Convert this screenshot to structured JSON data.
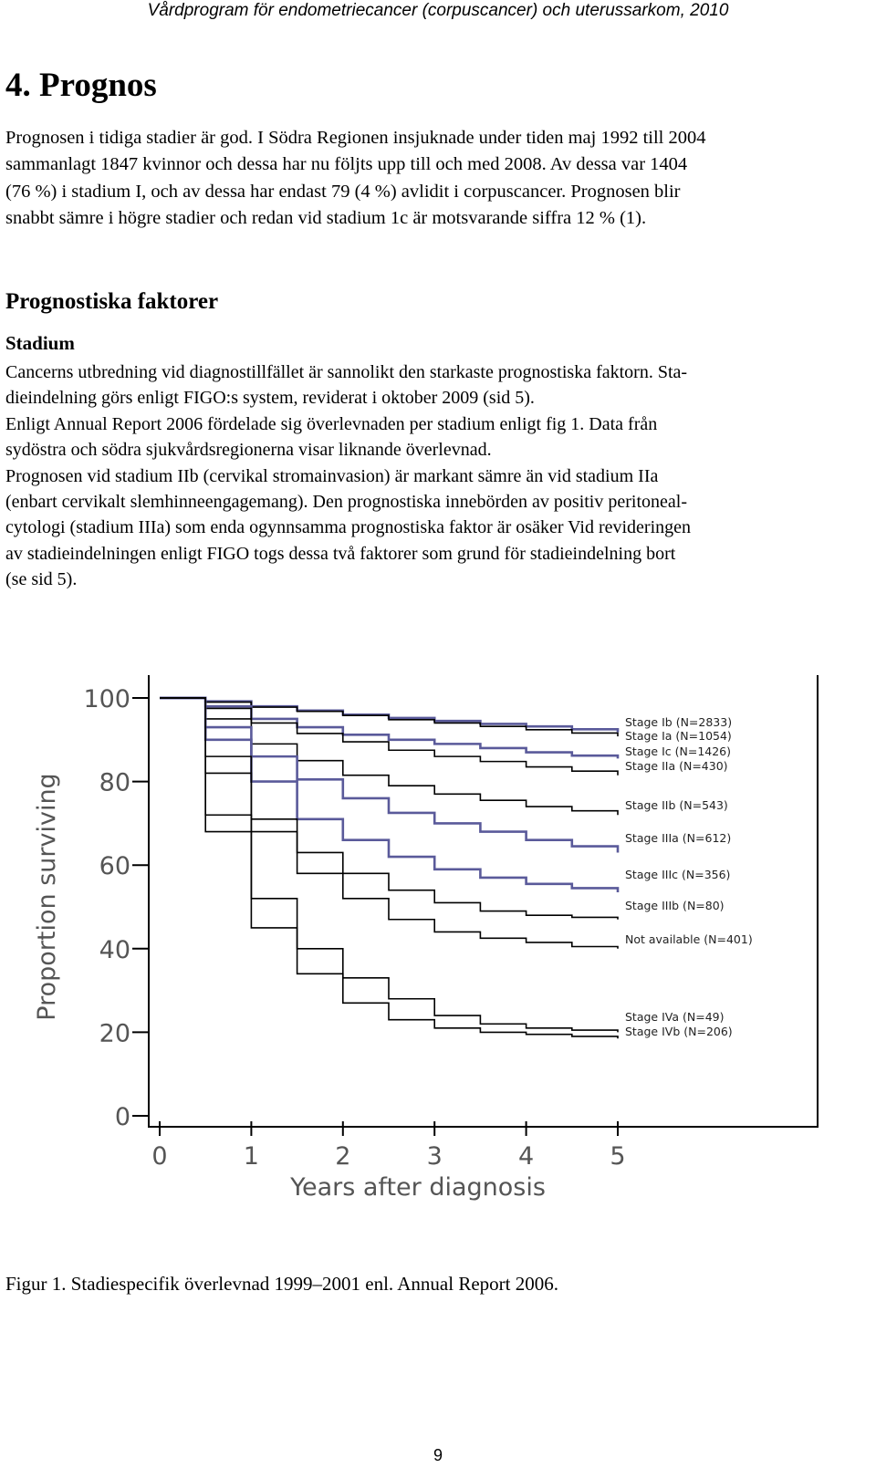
{
  "header": {
    "running_title": "Vårdprogram för endometriecancer (corpuscancer) och uterussarkom, 2010"
  },
  "chapter": {
    "title": "4. Prognos",
    "intro_lines": [
      "Prognosen i tidiga stadier är god. I Södra Regionen insjuknade under tiden maj 1992 till 2004",
      "sammanlagt 1847 kvinnor och dessa har nu följts upp till och med 2008. Av dessa var 1404",
      "(76 %) i stadium I, och av dessa har endast 79 (4 %) avlidit i corpuscancer. Prognosen blir",
      "snabbt sämre i högre stadier och redan vid stadium 1c är motsvarande siffra 12 % (1)."
    ]
  },
  "section": {
    "heading": "Prognostiska faktorer",
    "subheading": "Stadium",
    "lines": [
      "Cancerns utbredning vid diagnostillfället är sannolikt den starkaste prognostiska faktorn. Sta-",
      "dieindelning görs enligt FIGO:s system, reviderat i oktober 2009 (sid 5).",
      "Enligt Annual Report 2006 fördelade sig överlevnaden per stadium enligt fig 1. Data från",
      "sydöstra och södra sjukvårdsregionerna visar liknande överlevnad.",
      "Prognosen vid stadium IIb (cervikal stromainvasion) är markant sämre än vid stadium IIa",
      "(enbart cervikalt slemhinneengagemang). Den prognostiska innebörden av positiv peritoneal-",
      "cytologi (stadium IIIa) som enda ogynnsamma prognostiska faktor är osäker Vid revideringen",
      "av stadieindelningen enligt FIGO togs dessa två faktorer som grund för stadieindelning bort",
      "(se sid 5)."
    ]
  },
  "figure": {
    "caption": "Figur 1. Stadiespecifik överlevnad 1999–2001 enl. Annual Report 2006."
  },
  "chart_data": {
    "type": "line",
    "title": "",
    "xlabel": "Years after diagnosis",
    "ylabel": "Proportion surviving",
    "xlim": [
      0,
      5.5
    ],
    "ylim": [
      0,
      100
    ],
    "xticks": [
      "0",
      "1",
      "2",
      "3",
      "4",
      "5"
    ],
    "yticks": [
      "0",
      "20",
      "40",
      "60",
      "80",
      "100"
    ],
    "grid": false,
    "legend_position": "right, labels at line ends",
    "x": [
      0,
      0.5,
      1,
      1.5,
      2,
      2.5,
      3,
      3.5,
      4,
      4.5,
      5
    ],
    "series": [
      {
        "name": "Stage Ib (N=2833)",
        "values": [
          100,
          99.2,
          98,
          97,
          96,
          95.2,
          94.5,
          93.8,
          93.2,
          92.5,
          91.8
        ]
      },
      {
        "name": "Stage Ia (N=1054)",
        "values": [
          100,
          99,
          97.8,
          96.8,
          95.8,
          94.8,
          94,
          93.2,
          92.4,
          91.6,
          90.8
        ]
      },
      {
        "name": "Stage Ic (N=1426)",
        "values": [
          100,
          98,
          95,
          93,
          91.2,
          90,
          89,
          88,
          87,
          86.2,
          85.5
        ]
      },
      {
        "name": "Stage IIa (N=430)",
        "values": [
          100,
          97.5,
          94,
          91.5,
          89.5,
          87.5,
          86,
          84.8,
          83.5,
          82.5,
          81.5
        ]
      },
      {
        "name": "Stage IIb (N=543)",
        "values": [
          100,
          95,
          89,
          85,
          81.5,
          79,
          77,
          75.5,
          74,
          73,
          72
        ]
      },
      {
        "name": "Stage IIIa (N=612)",
        "values": [
          100,
          93,
          86,
          80.5,
          76,
          72.5,
          70,
          68,
          66,
          64.5,
          63
        ]
      },
      {
        "name": "Stage IIIc (N=356)",
        "values": [
          100,
          90,
          80,
          71,
          66,
          62,
          59,
          57,
          55.5,
          54.5,
          53.5
        ]
      },
      {
        "name": "Stage IIIb (N=80)",
        "values": [
          100,
          86,
          71,
          63,
          58,
          54,
          51,
          49,
          48,
          47.5,
          47
        ]
      },
      {
        "name": "Not available (N=401)",
        "values": [
          100,
          82,
          68,
          58,
          52,
          47,
          44,
          42.5,
          41.5,
          40.5,
          40
        ]
      },
      {
        "name": "Stage IVa (N=49)",
        "values": [
          100,
          72,
          52,
          40,
          33,
          28,
          24,
          22,
          21,
          20.5,
          20
        ]
      },
      {
        "name": "Stage IVb (N=206)",
        "values": [
          100,
          68,
          45,
          34,
          27,
          23,
          21,
          20,
          19.5,
          19,
          18.5
        ]
      }
    ],
    "colors": {
      "axis": "#000000",
      "ink": "#000000",
      "blue_series": "#5a5a9a",
      "text": "#555555"
    }
  },
  "page": {
    "number": "9"
  }
}
